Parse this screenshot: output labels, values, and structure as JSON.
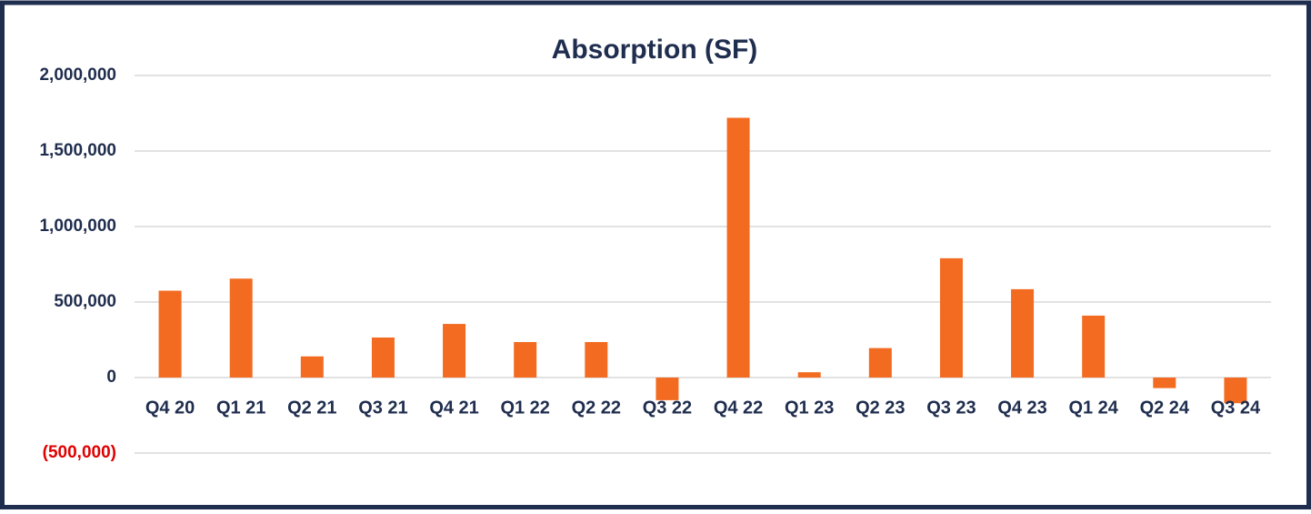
{
  "chart_data": {
    "type": "bar",
    "title": "Absorption (SF)",
    "categories": [
      "Q4 20",
      "Q1 21",
      "Q2 21",
      "Q3 21",
      "Q4 21",
      "Q1 22",
      "Q2 22",
      "Q3 22",
      "Q4 22",
      "Q1 23",
      "Q2 23",
      "Q3 23",
      "Q4 23",
      "Q1 24",
      "Q2 24",
      "Q3 24"
    ],
    "values": [
      575000,
      655000,
      140000,
      265000,
      355000,
      235000,
      235000,
      -150000,
      1720000,
      35000,
      195000,
      790000,
      585000,
      410000,
      -70000,
      -170000
    ],
    "color": "#f26b21",
    "ylim": [
      -700000,
      2000000
    ],
    "yticks": [
      {
        "value": -500000,
        "label": "(500,000)"
      },
      0,
      {
        "value": 500000,
        "label": "500,000"
      },
      {
        "value": 1000000,
        "label": "1,000,000"
      },
      {
        "value": 1500000,
        "label": "1,500,000"
      },
      {
        "value": 2000000,
        "label": "2,000,000"
      }
    ],
    "negative_tick_color": "#e00000",
    "grid": true
  }
}
